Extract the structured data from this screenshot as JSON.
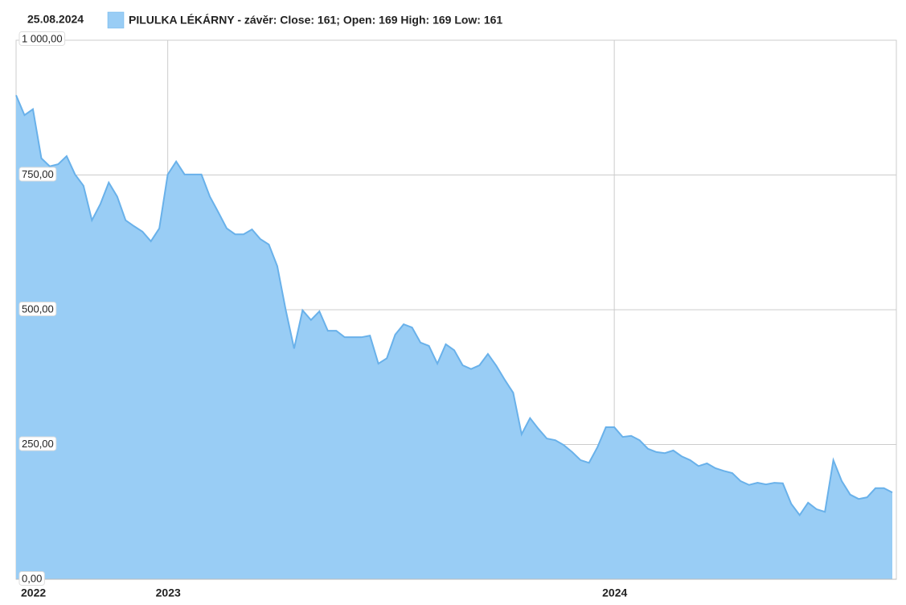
{
  "chart_data": {
    "type": "area",
    "date": "25.08.2024",
    "categories": [
      "2022",
      null,
      null,
      null,
      null,
      null,
      null,
      null,
      null,
      null,
      null,
      null,
      null,
      null,
      null,
      null,
      null,
      null,
      "2023",
      null,
      null,
      null,
      null,
      null,
      null,
      null,
      null,
      null,
      null,
      null,
      null,
      null,
      null,
      null,
      null,
      null,
      null,
      null,
      null,
      null,
      null,
      null,
      null,
      null,
      null,
      null,
      null,
      null,
      null,
      null,
      null,
      null,
      null,
      null,
      null,
      null,
      null,
      null,
      null,
      null,
      null,
      null,
      null,
      null,
      null,
      null,
      null,
      null,
      null,
      null,
      null,
      "2024",
      null,
      null,
      null,
      null,
      null,
      null,
      null,
      null,
      null,
      null,
      null,
      null,
      null,
      null,
      null,
      null,
      null,
      null,
      null,
      null,
      null,
      null,
      null,
      null,
      null,
      null,
      null,
      null,
      null,
      null,
      null,
      null,
      null
    ],
    "series": [
      {
        "name": "PILULKA LÉKÁRNY - závěr: Close: 161; Open: 169 High: 169 Low: 161",
        "color": "#99cdf5",
        "line_color": "#69b1ea",
        "values": [
          898,
          861,
          872,
          781,
          766,
          770,
          785,
          751,
          730,
          666,
          696,
          736,
          710,
          666,
          655,
          645,
          627,
          651,
          751,
          775,
          751,
          751,
          751,
          710,
          681,
          651,
          640,
          640,
          649,
          631,
          621,
          581,
          500,
          428,
          499,
          481,
          497,
          461,
          461,
          449,
          449,
          449,
          452,
          400,
          410,
          454,
          473,
          467,
          439,
          433,
          400,
          436,
          425,
          397,
          390,
          397,
          418,
          396,
          370,
          346,
          269,
          299,
          279,
          261,
          258,
          249,
          236,
          221,
          216,
          245,
          282,
          282,
          264,
          266,
          258,
          242,
          236,
          234,
          239,
          228,
          221,
          210,
          215,
          206,
          201,
          197,
          182,
          175,
          179,
          176,
          179,
          178,
          140,
          119,
          142,
          130,
          125,
          221,
          182,
          157,
          149,
          152,
          169,
          169,
          161
        ]
      }
    ],
    "ylim": [
      0,
      1000
    ],
    "yticks": [
      {
        "value": 0,
        "label": "0,00"
      },
      {
        "value": 250,
        "label": "250,00"
      },
      {
        "value": 500,
        "label": "500,00"
      },
      {
        "value": 750,
        "label": "750,00"
      },
      {
        "value": 1000,
        "label": "1 000,00"
      }
    ],
    "grid": true
  }
}
